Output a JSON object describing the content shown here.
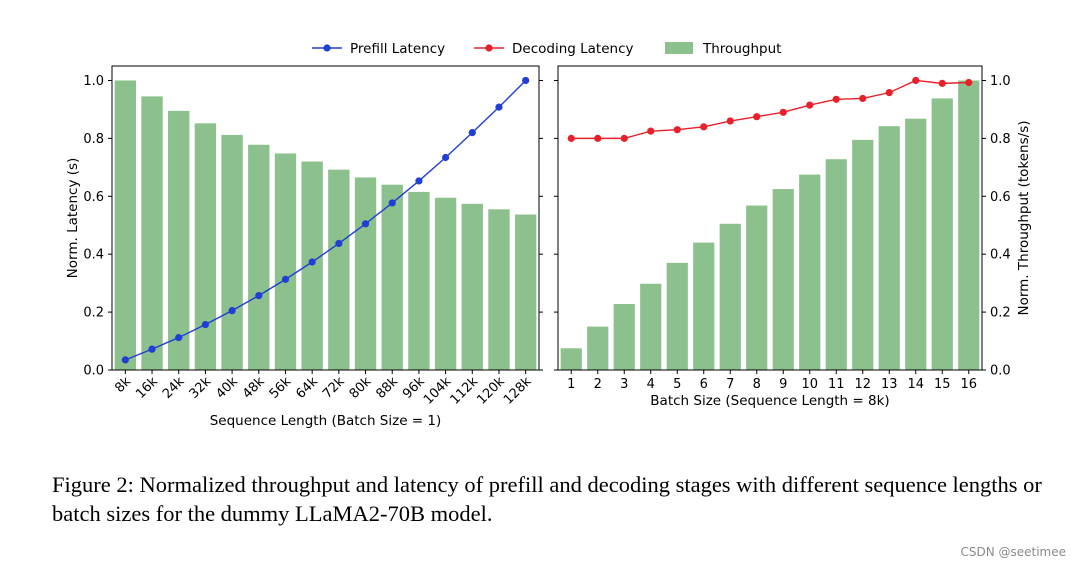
{
  "legend": {
    "placement": "top-center",
    "items": [
      {
        "label": "Prefill Latency",
        "color": "#1f3fd6",
        "type": "line-marker"
      },
      {
        "label": "Decoding Latency",
        "color": "#e8202a",
        "type": "line-marker"
      },
      {
        "label": "Throughput",
        "color": "#8cc08c",
        "type": "bar"
      }
    ]
  },
  "chart_data": [
    {
      "type": "bar+line",
      "xlabel": "Sequence Length (Batch Size = 1)",
      "ylabel": "Norm. Latency (s)",
      "ylim": [
        0,
        1.05
      ],
      "yticks": [
        "0.0",
        "0.2",
        "0.4",
        "0.6",
        "0.8",
        "1.0"
      ],
      "categories": [
        "8k",
        "16k",
        "24k",
        "32k",
        "40k",
        "48k",
        "56k",
        "64k",
        "72k",
        "80k",
        "88k",
        "96k",
        "104k",
        "112k",
        "120k",
        "128k"
      ],
      "series": [
        {
          "name": "Throughput",
          "type": "bar",
          "color": "#8cc08c",
          "values": [
            1.0,
            0.945,
            0.895,
            0.852,
            0.812,
            0.778,
            0.748,
            0.72,
            0.692,
            0.665,
            0.64,
            0.615,
            0.595,
            0.574,
            0.555,
            0.537
          ]
        },
        {
          "name": "Prefill Latency",
          "type": "line",
          "color": "#1f3fd6",
          "values": [
            0.035,
            0.072,
            0.112,
            0.157,
            0.205,
            0.257,
            0.313,
            0.373,
            0.437,
            0.505,
            0.577,
            0.653,
            0.734,
            0.82,
            0.908,
            1.0
          ]
        }
      ]
    },
    {
      "type": "bar+line",
      "xlabel": "Batch Size (Sequence Length = 8k)",
      "ylabel": "Norm. Throughput (tokens/s)",
      "ylabel_side": "right",
      "ylim": [
        0,
        1.05
      ],
      "yticks": [
        "0.0",
        "0.2",
        "0.4",
        "0.6",
        "0.8",
        "1.0"
      ],
      "categories": [
        "1",
        "2",
        "3",
        "4",
        "5",
        "6",
        "7",
        "8",
        "9",
        "10",
        "11",
        "12",
        "13",
        "14",
        "15",
        "16"
      ],
      "series": [
        {
          "name": "Throughput",
          "type": "bar",
          "color": "#8cc08c",
          "values": [
            0.075,
            0.15,
            0.228,
            0.298,
            0.37,
            0.44,
            0.505,
            0.568,
            0.625,
            0.675,
            0.728,
            0.795,
            0.842,
            0.868,
            0.938,
            1.0
          ]
        },
        {
          "name": "Decoding Latency",
          "type": "line",
          "color": "#e8202a",
          "values": [
            0.8,
            0.8,
            0.8,
            0.825,
            0.83,
            0.84,
            0.86,
            0.875,
            0.89,
            0.915,
            0.935,
            0.938,
            0.958,
            1.0,
            0.99,
            0.993
          ]
        }
      ]
    }
  ],
  "caption": "Figure 2: Normalized throughput and latency of prefill and decoding stages with different sequence lengths or batch sizes for the dummy LLaMA2-70B model.",
  "watermark": "CSDN @seetimee"
}
